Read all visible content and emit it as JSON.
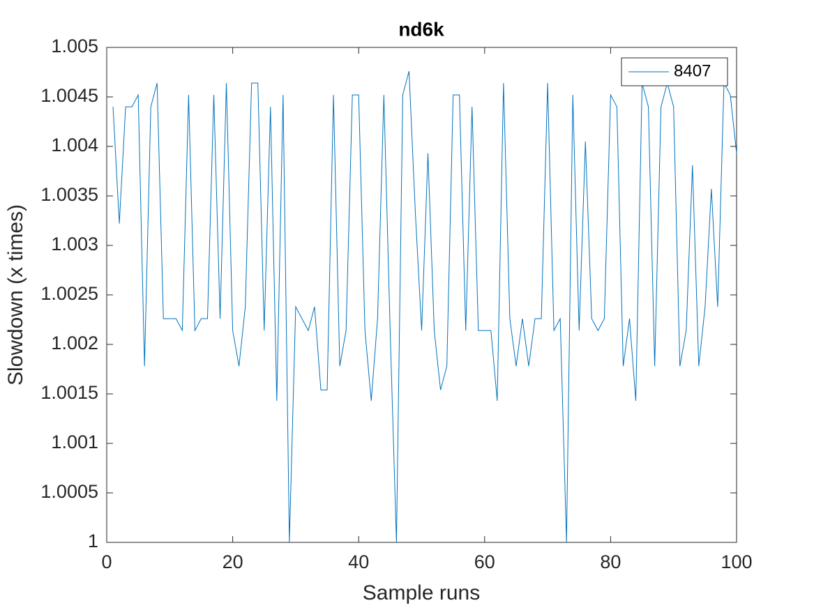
{
  "chart_data": {
    "type": "line",
    "title": "nd6k",
    "x_label": "Sample runs",
    "y_label": "Slowdown (x times)",
    "x": [
      1,
      2,
      3,
      4,
      5,
      6,
      7,
      8,
      9,
      10,
      11,
      12,
      13,
      14,
      15,
      16,
      17,
      18,
      19,
      20,
      21,
      22,
      23,
      24,
      25,
      26,
      27,
      28,
      29,
      30,
      31,
      32,
      33,
      34,
      35,
      36,
      37,
      38,
      39,
      40,
      41,
      42,
      43,
      44,
      45,
      46,
      47,
      48,
      49,
      50,
      51,
      52,
      53,
      54,
      55,
      56,
      57,
      58,
      59,
      60,
      61,
      62,
      63,
      64,
      65,
      66,
      67,
      68,
      69,
      70,
      71,
      72,
      73,
      74,
      75,
      76,
      77,
      78,
      79,
      80,
      81,
      82,
      83,
      84,
      85,
      86,
      87,
      88,
      89,
      90,
      91,
      92,
      93,
      94,
      95,
      96,
      97,
      98,
      99,
      100
    ],
    "series": [
      {
        "name": "8407",
        "color": "#0072bd",
        "values": [
          1.0044,
          1.00322,
          1.0044,
          1.0044,
          1.00452,
          1.00178,
          1.0044,
          1.00464,
          1.00226,
          1.00226,
          1.00226,
          1.00214,
          1.00452,
          1.00214,
          1.00226,
          1.00226,
          1.00452,
          1.00226,
          1.00464,
          1.00214,
          1.00178,
          1.00238,
          1.00464,
          1.00464,
          1.00214,
          1.0044,
          1.00143,
          1.00452,
          1.0,
          1.00238,
          1.00226,
          1.00214,
          1.00238,
          1.00154,
          1.00154,
          1.00452,
          1.00178,
          1.00214,
          1.00452,
          1.00452,
          1.00214,
          1.00143,
          1.00226,
          1.00452,
          1.00214,
          1.0,
          1.00452,
          1.00476,
          1.00333,
          1.00214,
          1.00393,
          1.00214,
          1.00154,
          1.00178,
          1.00452,
          1.00452,
          1.00214,
          1.0044,
          1.00214,
          1.00214,
          1.00214,
          1.00143,
          1.00464,
          1.00226,
          1.00178,
          1.00226,
          1.00178,
          1.00226,
          1.00226,
          1.00464,
          1.00214,
          1.00226,
          1.0,
          1.00452,
          1.00214,
          1.00405,
          1.00226,
          1.00214,
          1.00226,
          1.00452,
          1.0044,
          1.00178,
          1.00226,
          1.00143,
          1.00464,
          1.0044,
          1.00178,
          1.0044,
          1.00464,
          1.0044,
          1.00178,
          1.00214,
          1.00381,
          1.00178,
          1.00238,
          1.00357,
          1.00238,
          1.00464,
          1.00452,
          1.00393
        ]
      }
    ],
    "xlim": [
      0,
      100
    ],
    "xticks": [
      0,
      20,
      40,
      60,
      80,
      100
    ],
    "ylim": [
      1,
      1.005
    ],
    "yticks": [
      1,
      1.0005,
      1.001,
      1.0015,
      1.002,
      1.0025,
      1.003,
      1.0035,
      1.004,
      1.0045,
      1.005
    ],
    "legend": "top-right"
  }
}
